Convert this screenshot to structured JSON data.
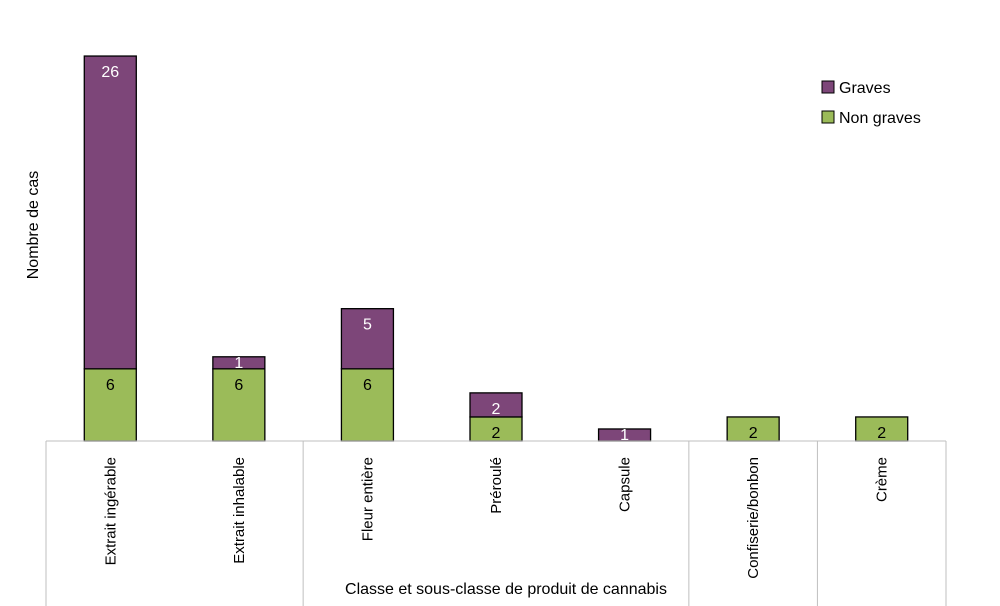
{
  "chart_data": {
    "type": "bar",
    "stacked": true,
    "categories": [
      "Extrait ingérable",
      "Extrait inhalable",
      "Fleur entière",
      "Préroulé",
      "Capsule",
      "Confiserie/bonbon",
      "Crème"
    ],
    "series": [
      {
        "name": "Non graves",
        "values": [
          6,
          6,
          6,
          2,
          0,
          2,
          2
        ],
        "color": "#9BBB59"
      },
      {
        "name": "Graves",
        "values": [
          26,
          1,
          5,
          2,
          1,
          0,
          0
        ],
        "color": "#7D4679"
      }
    ],
    "group_dividers_after": [
      1,
      4,
      5
    ],
    "title": "",
    "xlabel": "Classe et sous-classe de produit de cannabis",
    "ylabel": "Nombre de cas",
    "ylim": [
      0,
      32
    ],
    "grid": false,
    "legend_position": "top-right",
    "label_color_light": "#FFFFFF",
    "label_color_dark": "#000000",
    "axis_color": "#BFBFBF"
  }
}
